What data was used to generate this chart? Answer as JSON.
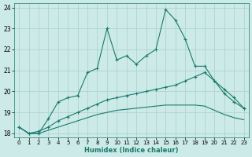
{
  "title": "",
  "xlabel": "Humidex (Indice chaleur)",
  "bg_color": "#cceae7",
  "grid_color": "#b0d4d0",
  "line_color": "#1a7a6e",
  "xlim": [
    -0.5,
    23.5
  ],
  "ylim": [
    17.8,
    24.2
  ],
  "xticks": [
    0,
    1,
    2,
    3,
    4,
    5,
    6,
    7,
    8,
    9,
    10,
    11,
    12,
    13,
    14,
    15,
    16,
    17,
    18,
    19,
    20,
    21,
    22,
    23
  ],
  "yticks": [
    18,
    19,
    20,
    21,
    22,
    23,
    24
  ],
  "line1_x": [
    0,
    1,
    2,
    3,
    4,
    5,
    6,
    7,
    8,
    9,
    10,
    11,
    12,
    13,
    14,
    15,
    16,
    17,
    18,
    19,
    20,
    21,
    22,
    23
  ],
  "line1_y": [
    18.3,
    18.0,
    18.0,
    18.7,
    19.5,
    19.7,
    19.8,
    20.9,
    21.1,
    23.0,
    21.5,
    21.7,
    21.3,
    21.7,
    22.0,
    23.9,
    23.4,
    22.5,
    21.2,
    21.2,
    20.5,
    19.9,
    19.5,
    19.2
  ],
  "line2_x": [
    0,
    1,
    2,
    3,
    4,
    5,
    6,
    7,
    8,
    9,
    10,
    11,
    12,
    13,
    14,
    15,
    16,
    17,
    18,
    19,
    20,
    21,
    22,
    23
  ],
  "line2_y": [
    18.3,
    18.0,
    18.1,
    18.3,
    18.6,
    18.8,
    19.0,
    19.2,
    19.4,
    19.6,
    19.7,
    19.8,
    19.9,
    20.0,
    20.1,
    20.2,
    20.3,
    20.5,
    20.7,
    20.9,
    20.5,
    20.1,
    19.7,
    19.2
  ],
  "line3_x": [
    0,
    1,
    2,
    3,
    4,
    5,
    6,
    7,
    8,
    9,
    10,
    11,
    12,
    13,
    14,
    15,
    16,
    17,
    18,
    19,
    20,
    21,
    22,
    23
  ],
  "line3_y": [
    18.3,
    18.0,
    18.0,
    18.15,
    18.3,
    18.45,
    18.6,
    18.75,
    18.9,
    19.0,
    19.1,
    19.15,
    19.2,
    19.25,
    19.3,
    19.35,
    19.35,
    19.35,
    19.35,
    19.3,
    19.1,
    18.9,
    18.75,
    18.65
  ]
}
